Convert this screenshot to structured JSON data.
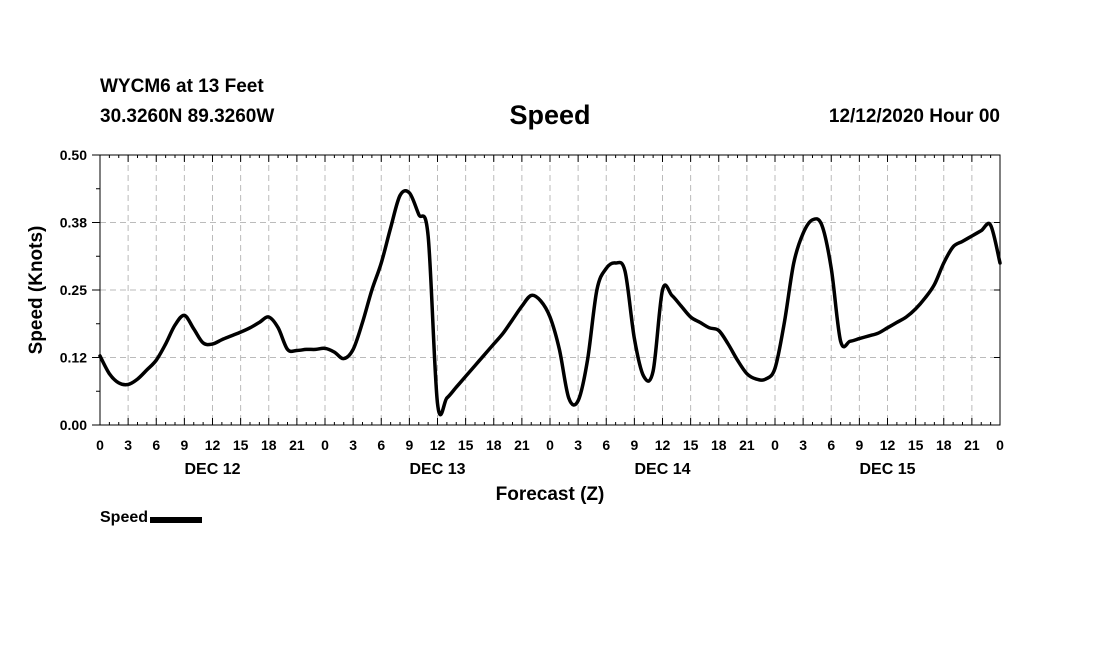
{
  "header": {
    "station": "WYCM6 at 13 Feet",
    "coords": "30.3260N 89.3260W",
    "title": "Speed",
    "datetime": "12/12/2020 Hour 00"
  },
  "chart_data": {
    "type": "line",
    "title": "Speed",
    "xlabel": "Forecast (Z)",
    "ylabel": "Speed (Knots)",
    "ylim": [
      0,
      0.5
    ],
    "y_ticks": [
      "0.00",
      "0.12",
      "0.25",
      "0.38",
      "0.50"
    ],
    "x_range_hours": [
      0,
      96
    ],
    "x_tick_labels": [
      "0",
      "3",
      "6",
      "9",
      "12",
      "15",
      "18",
      "21",
      "0",
      "3",
      "6",
      "9",
      "12",
      "15",
      "18",
      "21",
      "0",
      "3",
      "6",
      "9",
      "12",
      "15",
      "18",
      "21",
      "0",
      "3",
      "6",
      "9",
      "12",
      "15",
      "18",
      "21",
      "0"
    ],
    "day_labels": [
      {
        "hour": 12,
        "label": "DEC 12"
      },
      {
        "hour": 36,
        "label": "DEC 13"
      },
      {
        "hour": 60,
        "label": "DEC 14"
      },
      {
        "hour": 84,
        "label": "DEC 15"
      }
    ],
    "grid": true,
    "legend_position": "bottom-left",
    "series": [
      {
        "name": "Speed",
        "color": "#000000",
        "x": [
          0,
          1,
          2,
          3,
          4,
          5,
          6,
          7,
          8,
          9,
          10,
          11,
          12,
          13,
          14,
          15,
          16,
          17,
          18,
          19,
          20,
          21,
          22,
          23,
          24,
          25,
          26,
          27,
          28,
          29,
          30,
          31,
          32,
          33,
          34,
          35,
          36,
          37,
          38,
          39,
          40,
          41,
          42,
          43,
          44,
          45,
          46,
          47,
          48,
          49,
          50,
          51,
          52,
          53,
          54,
          55,
          56,
          57,
          58,
          59,
          60,
          61,
          62,
          63,
          64,
          65,
          66,
          67,
          68,
          69,
          70,
          71,
          72,
          73,
          74,
          75,
          76,
          77,
          78,
          79,
          80,
          81,
          82,
          83,
          84,
          85,
          86,
          87,
          88,
          89,
          90,
          91,
          92,
          93,
          94,
          95,
          96
        ],
        "values": [
          0.128,
          0.095,
          0.078,
          0.075,
          0.085,
          0.102,
          0.12,
          0.15,
          0.185,
          0.203,
          0.178,
          0.152,
          0.15,
          0.158,
          0.165,
          0.172,
          0.18,
          0.19,
          0.2,
          0.18,
          0.14,
          0.138,
          0.14,
          0.14,
          0.142,
          0.135,
          0.123,
          0.14,
          0.19,
          0.25,
          0.3,
          0.365,
          0.425,
          0.43,
          0.39,
          0.35,
          0.04,
          0.05,
          0.07,
          0.09,
          0.11,
          0.13,
          0.15,
          0.17,
          0.195,
          0.22,
          0.24,
          0.23,
          0.2,
          0.14,
          0.05,
          0.045,
          0.12,
          0.25,
          0.29,
          0.3,
          0.285,
          0.16,
          0.09,
          0.1,
          0.25,
          0.24,
          0.22,
          0.2,
          0.19,
          0.18,
          0.175,
          0.15,
          0.12,
          0.095,
          0.085,
          0.085,
          0.105,
          0.19,
          0.3,
          0.355,
          0.38,
          0.37,
          0.29,
          0.155,
          0.155,
          0.16,
          0.165,
          0.17,
          0.18,
          0.19,
          0.2,
          0.215,
          0.235,
          0.26,
          0.3,
          0.33,
          0.34,
          0.35,
          0.36,
          0.37,
          0.3
        ]
      }
    ]
  },
  "legend": {
    "label": "Speed"
  }
}
